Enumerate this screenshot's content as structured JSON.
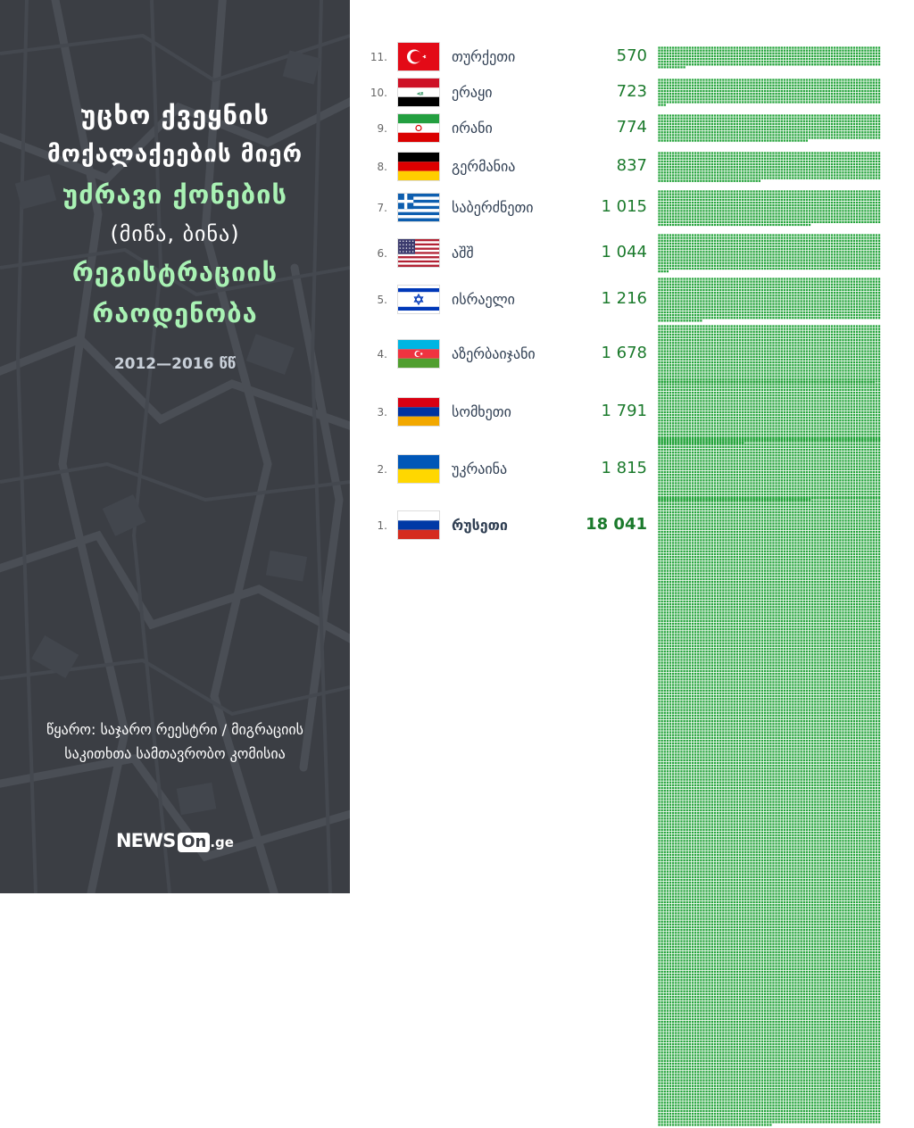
{
  "title": {
    "line1": "უცხო ქვეყნის",
    "line2": "მოქალაქეების მიერ",
    "line3": "უძრავი ქონების",
    "line4": "(მიწა, ბინა)",
    "line5": "რეგისტრაციის",
    "line6": "რაოდენობა",
    "years": "2012—2016 წწ"
  },
  "source": {
    "line1": "წყარო: საჯარო რეესტრი / მიგრაციის",
    "line2": "საკითხთა სამთავრობო კომისია"
  },
  "logo": {
    "news": "NEWS",
    "on": "On",
    "ge": ".ge"
  },
  "colors": {
    "panel": "#3b3e44",
    "accent_green": "#a9f2b4",
    "value_green": "#1b7a2c",
    "square_green": "#23a33a",
    "country_text": "#2f3e52"
  },
  "chart_data": {
    "type": "bar",
    "unit_note": "each small square represents one registration",
    "rows": [
      {
        "rank": "11.",
        "country": "თურქეთი",
        "value": 570,
        "value_label": "570",
        "flag": "turkey-flag"
      },
      {
        "rank": "10.",
        "country": "ერაყი",
        "value": 723,
        "value_label": "723",
        "flag": "iraq-flag"
      },
      {
        "rank": "9.",
        "country": "ირანი",
        "value": 774,
        "value_label": "774",
        "flag": "iran-flag"
      },
      {
        "rank": "8.",
        "country": "გერმანია",
        "value": 837,
        "value_label": "837",
        "flag": "germany-flag"
      },
      {
        "rank": "7.",
        "country": "საბერძნეთი",
        "value": 1015,
        "value_label": "1 015",
        "flag": "greece-flag"
      },
      {
        "rank": "6.",
        "country": "აშშ",
        "value": 1044,
        "value_label": "1 044",
        "flag": "usa-flag"
      },
      {
        "rank": "5.",
        "country": "ისრაელი",
        "value": 1216,
        "value_label": "1 216",
        "flag": "israel-flag"
      },
      {
        "rank": "4.",
        "country": "აზერბაიჯანი",
        "value": 1678,
        "value_label": "1 678",
        "flag": "azerbaijan-flag"
      },
      {
        "rank": "3.",
        "country": "სომხეთი",
        "value": 1791,
        "value_label": "1 791",
        "flag": "armenia-flag"
      },
      {
        "rank": "2.",
        "country": "უკრაინა",
        "value": 1815,
        "value_label": "1 815",
        "flag": "ukraine-flag"
      },
      {
        "rank": "1.",
        "country": "რუსეთი",
        "value": 18041,
        "value_label": "18 041",
        "flag": "russia-flag"
      }
    ]
  }
}
